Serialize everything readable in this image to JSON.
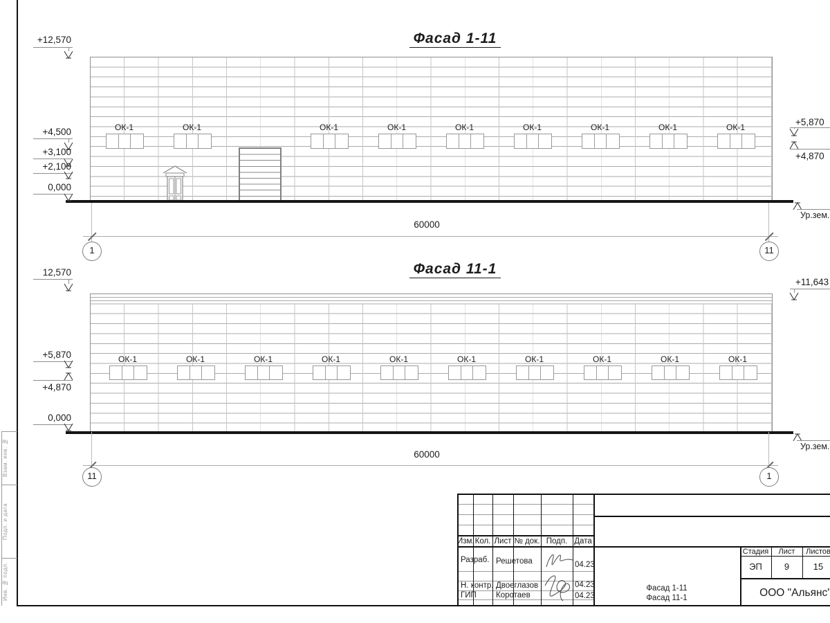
{
  "drawing": {
    "facade1": {
      "title": "Фасад 1-11",
      "window_mark": "ОК-1",
      "window_count": 9,
      "dimension": "60000",
      "axis_left": "1",
      "axis_right": "11",
      "marks_left": [
        "+12,570",
        "+4,500",
        "+3,100",
        "+2,100",
        "0,000"
      ],
      "marks_right": [
        "+5,870",
        "+4,870"
      ],
      "ground_label": "Ур.зем."
    },
    "facade2": {
      "title": "Фасад 11-1",
      "window_mark": "ОК-1",
      "window_count": 10,
      "dimension": "60000",
      "axis_left": "11",
      "axis_right": "1",
      "marks_left": [
        "12,570",
        "+5,870",
        "+4,870",
        "0,000"
      ],
      "marks_right": [
        "+11,643"
      ],
      "ground_label": "Ур.зем."
    }
  },
  "title_block": {
    "rev_columns": [
      "Изм.",
      "Кол.",
      "Лист",
      "№ док.",
      "Подп.",
      "Дата"
    ],
    "signers": [
      {
        "role": "Разраб.",
        "name": "Решетова",
        "date": "04.23"
      },
      {
        "role": "Н. контр.",
        "name": "Двоеглазов",
        "date": "04.23"
      },
      {
        "role": "ГИП",
        "name": "Коротаев",
        "date": "04.23"
      }
    ],
    "stage_label": "Стадия",
    "sheet_label": "Лист",
    "sheets_label": "Листов",
    "stage_value": "ЭП",
    "sheet_value": "9",
    "sheets_value": "15",
    "doc_title_line1": "Фасад 1-11",
    "doc_title_line2": "Фасад 11-1",
    "organization": "ООО \"Альянс\""
  },
  "sheet_margin": {
    "labels": [
      "Взам. инв. №",
      "Подп. и дата",
      "Инв. № подл."
    ]
  }
}
